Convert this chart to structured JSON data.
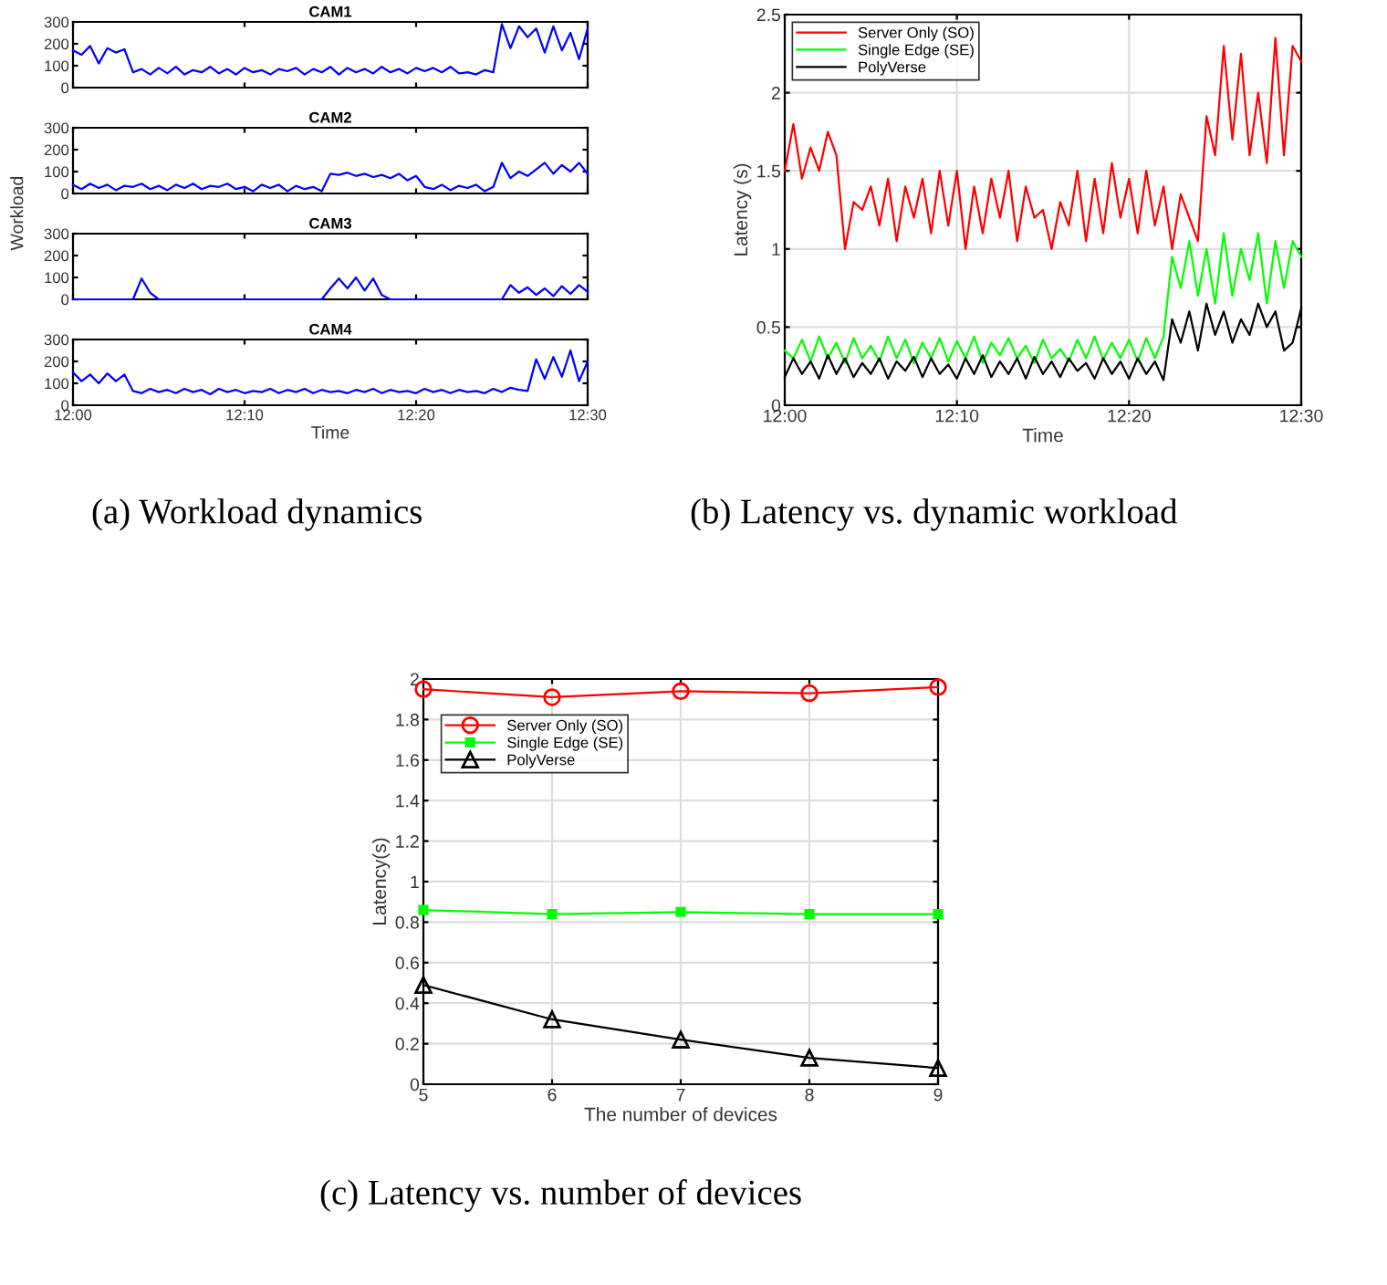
{
  "chart_data": [
    {
      "type": "line",
      "title": "CAM1",
      "x": [
        12,
        12.00833,
        12.01667,
        12.025,
        12.03333,
        12.04167,
        12.05,
        12.05833,
        12.06667,
        12.075,
        12.08333,
        12.09167,
        12.1,
        12.10833,
        12.11667,
        12.125,
        12.13333,
        12.14167,
        12.15,
        12.15833,
        12.16667,
        12.175,
        12.18333,
        12.19167,
        12.2,
        12.20833,
        12.21667,
        12.225,
        12.23333,
        12.24167,
        12.25,
        12.25833,
        12.26667,
        12.275,
        12.28333,
        12.29167,
        12.3,
        12.30833,
        12.31667,
        12.325,
        12.33333,
        12.34167,
        12.35,
        12.35833,
        12.36667,
        12.375,
        12.38333,
        12.39167,
        12.4,
        12.40833,
        12.41667,
        12.425,
        12.43333,
        12.44167,
        12.45,
        12.45833,
        12.46667,
        12.475,
        12.48333,
        12.49167,
        12.5
      ],
      "xlim": [
        12,
        12.5
      ],
      "ylim": [
        0,
        300
      ],
      "yticks": [
        0,
        100,
        200,
        300
      ],
      "tick_labels": "y",
      "series": [
        {
          "color": "#0000ff",
          "values": [
            170,
            150,
            190,
            110,
            180,
            160,
            175,
            70,
            85,
            60,
            90,
            65,
            95,
            60,
            80,
            70,
            95,
            65,
            85,
            60,
            90,
            70,
            80,
            60,
            85,
            75,
            90,
            60,
            85,
            70,
            95,
            60,
            90,
            70,
            85,
            65,
            95,
            70,
            85,
            65,
            90,
            75,
            90,
            70,
            95,
            65,
            70,
            60,
            80,
            70,
            290,
            180,
            280,
            230,
            270,
            160,
            280,
            170,
            250,
            130,
            270
          ]
        }
      ]
    },
    {
      "type": "line",
      "title": "CAM2",
      "ylabel": "Workload",
      "x": [
        12,
        12.00833,
        12.01667,
        12.025,
        12.03333,
        12.04167,
        12.05,
        12.05833,
        12.06667,
        12.075,
        12.08333,
        12.09167,
        12.1,
        12.10833,
        12.11667,
        12.125,
        12.13333,
        12.14167,
        12.15,
        12.15833,
        12.16667,
        12.175,
        12.18333,
        12.19167,
        12.2,
        12.20833,
        12.21667,
        12.225,
        12.23333,
        12.24167,
        12.25,
        12.25833,
        12.26667,
        12.275,
        12.28333,
        12.29167,
        12.3,
        12.30833,
        12.31667,
        12.325,
        12.33333,
        12.34167,
        12.35,
        12.35833,
        12.36667,
        12.375,
        12.38333,
        12.39167,
        12.4,
        12.40833,
        12.41667,
        12.425,
        12.43333,
        12.44167,
        12.45,
        12.45833,
        12.46667,
        12.475,
        12.48333,
        12.49167,
        12.5
      ],
      "xlim": [
        12,
        12.5
      ],
      "ylim": [
        0,
        300
      ],
      "yticks": [
        0,
        100,
        200,
        300
      ],
      "tick_labels": "y",
      "series": [
        {
          "color": "#0000ff",
          "values": [
            40,
            20,
            45,
            25,
            40,
            15,
            35,
            30,
            45,
            20,
            35,
            15,
            40,
            25,
            45,
            20,
            35,
            30,
            45,
            20,
            30,
            10,
            40,
            25,
            40,
            10,
            35,
            20,
            30,
            10,
            90,
            85,
            95,
            80,
            90,
            75,
            85,
            70,
            90,
            60,
            80,
            30,
            20,
            40,
            15,
            35,
            25,
            40,
            10,
            30,
            140,
            70,
            100,
            80,
            110,
            140,
            90,
            130,
            100,
            140,
            90
          ]
        }
      ]
    },
    {
      "type": "line",
      "title": "CAM3",
      "x": [
        12,
        12.00833,
        12.01667,
        12.025,
        12.03333,
        12.04167,
        12.05,
        12.05833,
        12.06667,
        12.075,
        12.08333,
        12.09167,
        12.1,
        12.10833,
        12.11667,
        12.125,
        12.13333,
        12.14167,
        12.15,
        12.15833,
        12.16667,
        12.175,
        12.18333,
        12.19167,
        12.2,
        12.20833,
        12.21667,
        12.225,
        12.23333,
        12.24167,
        12.25,
        12.25833,
        12.26667,
        12.275,
        12.28333,
        12.29167,
        12.3,
        12.30833,
        12.31667,
        12.325,
        12.33333,
        12.34167,
        12.35,
        12.35833,
        12.36667,
        12.375,
        12.38333,
        12.39167,
        12.4,
        12.40833,
        12.41667,
        12.425,
        12.43333,
        12.44167,
        12.45,
        12.45833,
        12.46667,
        12.475,
        12.48333,
        12.49167,
        12.5
      ],
      "xlim": [
        12,
        12.5
      ],
      "ylim": [
        0,
        300
      ],
      "yticks": [
        0,
        100,
        200,
        300
      ],
      "tick_labels": "y",
      "series": [
        {
          "color": "#0000ff",
          "values": [
            0,
            0,
            0,
            0,
            0,
            0,
            0,
            0,
            95,
            30,
            0,
            0,
            0,
            0,
            0,
            0,
            0,
            0,
            0,
            0,
            0,
            0,
            0,
            0,
            0,
            0,
            0,
            0,
            0,
            0,
            50,
            95,
            50,
            100,
            40,
            95,
            20,
            0,
            0,
            0,
            0,
            0,
            0,
            0,
            0,
            0,
            0,
            0,
            0,
            0,
            0,
            65,
            30,
            55,
            20,
            50,
            15,
            60,
            25,
            65,
            35
          ]
        }
      ]
    },
    {
      "type": "line",
      "title": "CAM4",
      "xlabel": "Time",
      "x": [
        12,
        12.00833,
        12.01667,
        12.025,
        12.03333,
        12.04167,
        12.05,
        12.05833,
        12.06667,
        12.075,
        12.08333,
        12.09167,
        12.1,
        12.10833,
        12.11667,
        12.125,
        12.13333,
        12.14167,
        12.15,
        12.15833,
        12.16667,
        12.175,
        12.18333,
        12.19167,
        12.2,
        12.20833,
        12.21667,
        12.225,
        12.23333,
        12.24167,
        12.25,
        12.25833,
        12.26667,
        12.275,
        12.28333,
        12.29167,
        12.3,
        12.30833,
        12.31667,
        12.325,
        12.33333,
        12.34167,
        12.35,
        12.35833,
        12.36667,
        12.375,
        12.38333,
        12.39167,
        12.4,
        12.40833,
        12.41667,
        12.425,
        12.43333,
        12.44167,
        12.45,
        12.45833,
        12.46667,
        12.475,
        12.48333,
        12.49167,
        12.5
      ],
      "xlim": [
        12,
        12.5
      ],
      "xticks": [
        {
          "value": 12,
          "label": "12:00"
        },
        {
          "value": 12.16667,
          "label": "12:10"
        },
        {
          "value": 12.33333,
          "label": "12:20"
        },
        {
          "value": 12.5,
          "label": "12:30"
        }
      ],
      "ylim": [
        0,
        300
      ],
      "yticks": [
        0,
        100,
        200,
        300
      ],
      "annotations": [
        "(a) Workload dynamics"
      ],
      "series": [
        {
          "color": "#0000ff",
          "values": [
            150,
            110,
            140,
            100,
            145,
            110,
            140,
            65,
            55,
            75,
            60,
            70,
            55,
            75,
            60,
            70,
            50,
            75,
            60,
            70,
            55,
            65,
            60,
            75,
            55,
            70,
            60,
            75,
            55,
            70,
            60,
            65,
            55,
            70,
            60,
            75,
            55,
            70,
            60,
            65,
            55,
            75,
            60,
            70,
            55,
            70,
            60,
            65,
            55,
            75,
            60,
            80,
            70,
            65,
            210,
            120,
            220,
            130,
            250,
            110,
            200
          ]
        }
      ]
    },
    {
      "type": "line",
      "xlabel": "Time",
      "ylabel": "Latency (s)",
      "x": [
        12,
        12.00833,
        12.01667,
        12.025,
        12.03333,
        12.04167,
        12.05,
        12.05833,
        12.06667,
        12.075,
        12.08333,
        12.09167,
        12.1,
        12.10833,
        12.11667,
        12.125,
        12.13333,
        12.14167,
        12.15,
        12.15833,
        12.16667,
        12.175,
        12.18333,
        12.19167,
        12.2,
        12.20833,
        12.21667,
        12.225,
        12.23333,
        12.24167,
        12.25,
        12.25833,
        12.26667,
        12.275,
        12.28333,
        12.29167,
        12.3,
        12.30833,
        12.31667,
        12.325,
        12.33333,
        12.34167,
        12.35,
        12.35833,
        12.36667,
        12.375,
        12.38333,
        12.39167,
        12.4,
        12.40833,
        12.41667,
        12.425,
        12.43333,
        12.44167,
        12.45,
        12.45833,
        12.46667,
        12.475,
        12.48333,
        12.49167,
        12.5
      ],
      "xlim": [
        12,
        12.5
      ],
      "xticks": [
        {
          "value": 12,
          "label": "12:00"
        },
        {
          "value": 12.16667,
          "label": "12:10"
        },
        {
          "value": 12.33333,
          "label": "12:20"
        },
        {
          "value": 12.5,
          "label": "12:30"
        }
      ],
      "ylim": [
        0,
        2.5
      ],
      "yticks": [
        0,
        0.5,
        1,
        1.5,
        2,
        2.5
      ],
      "grid": true,
      "legend": "top left",
      "annotations": [
        "(b) Latency vs. dynamic workload"
      ],
      "series": [
        {
          "name": "Server Only (SO)",
          "color": "#ff0000",
          "values": [
            1.5,
            1.8,
            1.45,
            1.65,
            1.5,
            1.75,
            1.6,
            1.0,
            1.3,
            1.25,
            1.4,
            1.15,
            1.45,
            1.05,
            1.4,
            1.2,
            1.45,
            1.1,
            1.5,
            1.15,
            1.5,
            1.0,
            1.4,
            1.1,
            1.45,
            1.2,
            1.5,
            1.05,
            1.4,
            1.2,
            1.25,
            1.0,
            1.3,
            1.15,
            1.5,
            1.05,
            1.45,
            1.1,
            1.55,
            1.2,
            1.45,
            1.1,
            1.5,
            1.15,
            1.4,
            1.0,
            1.35,
            1.2,
            1.05,
            1.85,
            1.6,
            2.3,
            1.7,
            2.25,
            1.6,
            2.0,
            1.55,
            2.35,
            1.6,
            2.3,
            2.2
          ]
        },
        {
          "name": "Single Edge (SE)",
          "color": "#00ff00",
          "values": [
            0.35,
            0.3,
            0.42,
            0.28,
            0.44,
            0.3,
            0.4,
            0.27,
            0.43,
            0.3,
            0.38,
            0.28,
            0.44,
            0.3,
            0.42,
            0.27,
            0.4,
            0.3,
            0.43,
            0.28,
            0.41,
            0.3,
            0.44,
            0.27,
            0.4,
            0.32,
            0.43,
            0.3,
            0.38,
            0.27,
            0.42,
            0.3,
            0.36,
            0.28,
            0.42,
            0.3,
            0.44,
            0.29,
            0.4,
            0.3,
            0.42,
            0.28,
            0.43,
            0.3,
            0.44,
            0.95,
            0.75,
            1.05,
            0.7,
            1.0,
            0.65,
            1.1,
            0.7,
            1.0,
            0.8,
            1.1,
            0.65,
            1.05,
            0.75,
            1.05,
            0.95
          ]
        },
        {
          "name": "PolyVerse",
          "color": "#000000",
          "values": [
            0.18,
            0.3,
            0.2,
            0.28,
            0.17,
            0.32,
            0.2,
            0.3,
            0.18,
            0.27,
            0.2,
            0.3,
            0.17,
            0.28,
            0.22,
            0.31,
            0.18,
            0.3,
            0.2,
            0.26,
            0.17,
            0.3,
            0.2,
            0.32,
            0.18,
            0.28,
            0.2,
            0.3,
            0.17,
            0.31,
            0.2,
            0.28,
            0.18,
            0.3,
            0.22,
            0.27,
            0.17,
            0.3,
            0.2,
            0.28,
            0.17,
            0.3,
            0.2,
            0.28,
            0.16,
            0.55,
            0.4,
            0.6,
            0.35,
            0.65,
            0.45,
            0.6,
            0.4,
            0.55,
            0.45,
            0.65,
            0.5,
            0.6,
            0.35,
            0.4,
            0.62
          ]
        }
      ]
    },
    {
      "type": "line",
      "xlabel": "The number of devices",
      "ylabel": "Latency(s)",
      "x": [
        5,
        6,
        7,
        8,
        9
      ],
      "xlim": [
        5,
        9
      ],
      "xticks": [
        5,
        6,
        7,
        8,
        9
      ],
      "ylim": [
        0,
        2
      ],
      "yticks": [
        0,
        0.2,
        0.4,
        0.6,
        0.8,
        1,
        1.2,
        1.4,
        1.6,
        1.8,
        2
      ],
      "grid": true,
      "legend": "top left",
      "annotations": [
        "(c) Latency vs. number of devices"
      ],
      "series": [
        {
          "name": "Server Only (SO)",
          "color": "#ff0000",
          "marker": "circle",
          "values": [
            1.95,
            1.91,
            1.94,
            1.93,
            1.96
          ]
        },
        {
          "name": "Single Edge (SE)",
          "color": "#00ff00",
          "marker": "square",
          "values": [
            0.86,
            0.84,
            0.85,
            0.84,
            0.84
          ]
        },
        {
          "name": "PolyVerse",
          "color": "#000000",
          "marker": "triangle",
          "values": [
            0.49,
            0.32,
            0.22,
            0.13,
            0.08
          ]
        }
      ]
    }
  ]
}
